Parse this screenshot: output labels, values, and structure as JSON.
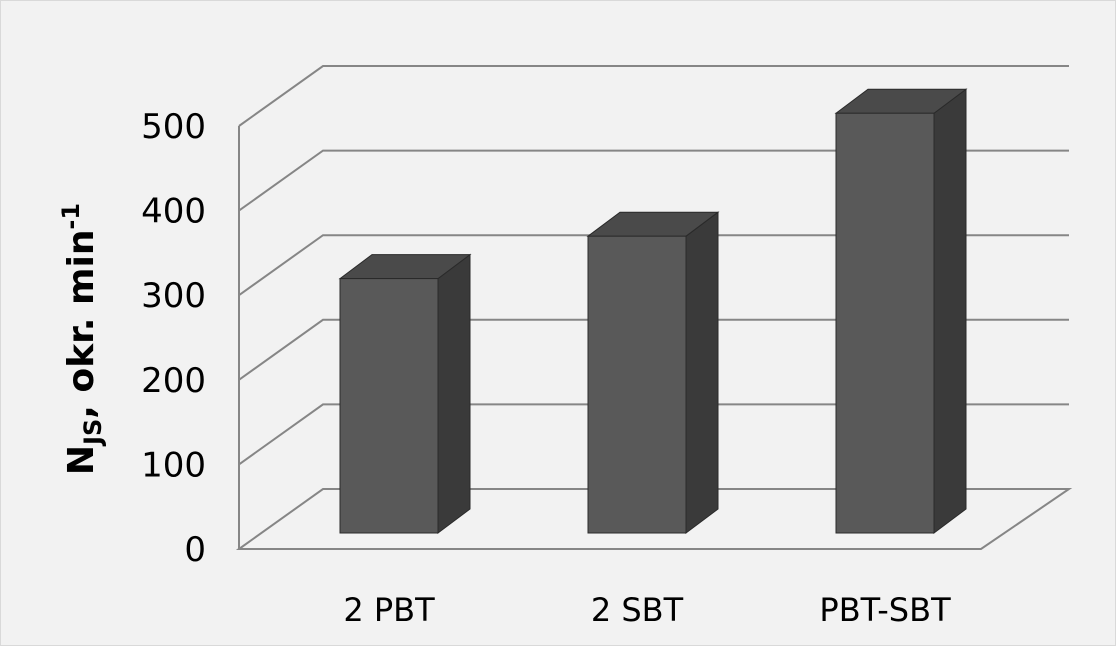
{
  "chart_data": {
    "type": "bar",
    "style": "3d-column",
    "categories": [
      "2 PBT",
      "2 SBT",
      "PBT-SBT"
    ],
    "values": [
      300,
      350,
      495
    ],
    "ylabel": {
      "main": "N",
      "subscript": "JS",
      "rest": ", okr. min",
      "superscript": "-1"
    },
    "ylim": [
      0,
      500
    ],
    "yticks": [
      "0",
      "100",
      "200",
      "300",
      "400",
      "500"
    ],
    "grid": true,
    "legend": "none",
    "colors": {
      "bar_front": "#595959",
      "bar_side": "#3a3a3a",
      "bar_top": "#4a4a4a",
      "grid": "#868686",
      "background": "#f2f2f2"
    }
  }
}
